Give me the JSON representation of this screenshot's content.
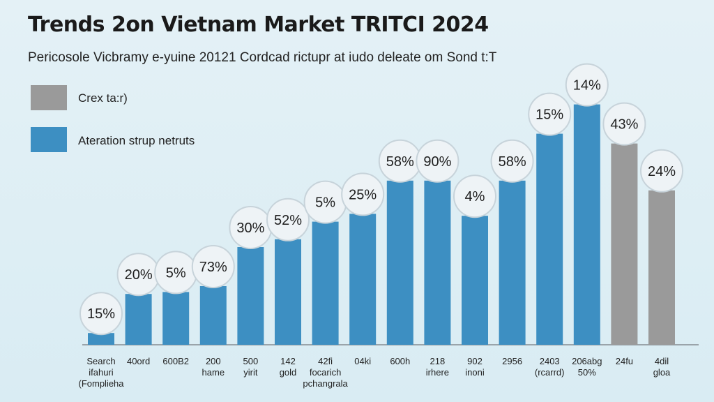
{
  "chart_data": {
    "type": "bar",
    "title": "Trends 2on Vietnam Market TRITCI 2024",
    "subtitle": "Pericosole Vicbramy e-yuine 20121 Cordcad rictupr at iudo deleate om Sond t:T",
    "legend": {
      "placement": "top-left",
      "entries": [
        {
          "name": "Crex ta:r)",
          "color": "#9a9a9a"
        },
        {
          "name": "Ateration strup netruts",
          "color": "#3d8fc2"
        }
      ]
    },
    "categories": [
      [
        "Search",
        "ifahuri",
        "(Fomplieha"
      ],
      [
        "40ord"
      ],
      [
        "600B2"
      ],
      [
        "200",
        "hame"
      ],
      [
        "500",
        "yirit"
      ],
      [
        "142",
        "gold"
      ],
      [
        "42fi",
        "focarich",
        "pchangrala"
      ],
      [
        "04ki"
      ],
      [
        "600h"
      ],
      [
        "218",
        "irhere"
      ],
      [
        "902",
        "inoni"
      ],
      [
        "2956"
      ],
      [
        "2403",
        "(rcarrd)"
      ],
      [
        "206abg",
        "50%"
      ],
      [
        "24fu"
      ],
      [
        "4dil",
        "gloa"
      ]
    ],
    "values": [
      6,
      26,
      27,
      30,
      50,
      54,
      63,
      67,
      84,
      84,
      66,
      84,
      108,
      123,
      103,
      79
    ],
    "bar_colors": [
      "#3d8fc2",
      "#3d8fc2",
      "#3d8fc2",
      "#3d8fc2",
      "#3d8fc2",
      "#3d8fc2",
      "#3d8fc2",
      "#3d8fc2",
      "#3d8fc2",
      "#3d8fc2",
      "#3d8fc2",
      "#3d8fc2",
      "#3d8fc2",
      "#3d8fc2",
      "#9a9a9a",
      "#9a9a9a"
    ],
    "data_labels": [
      "15%",
      "20%",
      "5%",
      "73%",
      "30%",
      "52%",
      "5%",
      "25%",
      "58%",
      "90%",
      "4%",
      "58%",
      "15%",
      "14%",
      "43%",
      "24%"
    ],
    "ylim": [
      0,
      130
    ],
    "xlabel": "",
    "ylabel": "",
    "grid": false
  }
}
